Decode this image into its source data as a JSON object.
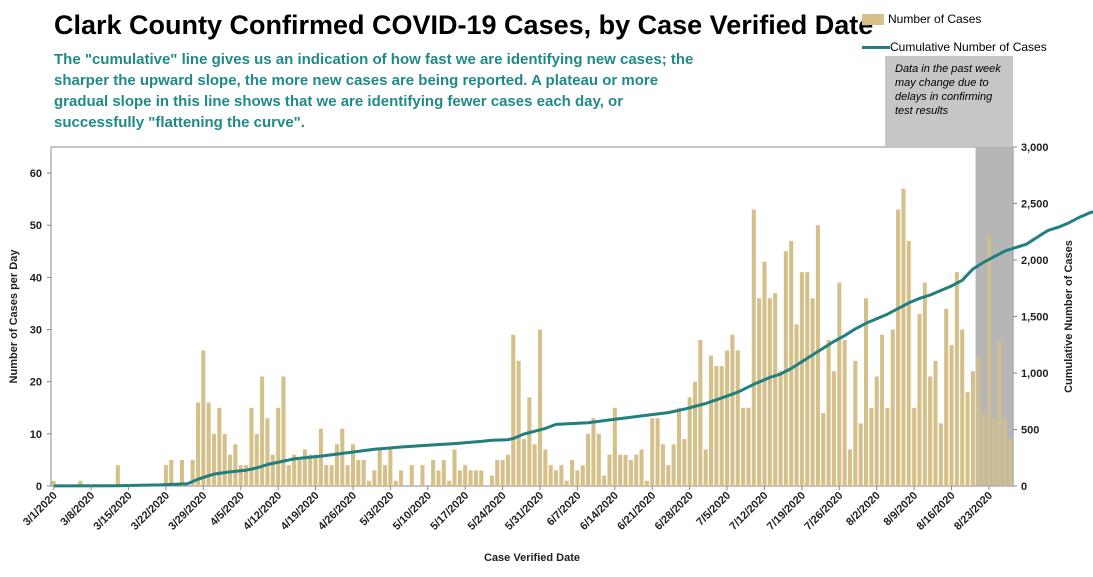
{
  "title": "Clark County Confirmed COVID-19 Cases, by Case Verified Date",
  "subtitle": "The \"cumulative\" line gives  us an indication of how fast we are identifying new cases; the sharper the upward slope, the more new cases are being reported. A plateau or more gradual slope in this line shows that we are identifying fewer cases each day, or successfully \"flattening the curve\".",
  "note": "Data in the past week may change due to delays in confirming test results",
  "colors": {
    "bar": "#d5c08a",
    "line": "#217f80",
    "subtitle": "#1f8a86",
    "shade": "#a9a9a9",
    "note_bg": "#c6c6c6"
  },
  "chart_data": {
    "type": "bar",
    "title": "Clark County Confirmed COVID-19 Cases, by Case Verified Date",
    "xlabel": "Case Verified Date",
    "ylabel": "Number of Cases per Day",
    "y2label": "Cumulative Number of Cases",
    "ylim": [
      0,
      65
    ],
    "y2lim": [
      0,
      3000
    ],
    "yticks": [
      "0",
      "10",
      "20",
      "30",
      "40",
      "50",
      "60"
    ],
    "y2ticks": [
      "0",
      "500",
      "1,000",
      "1,500",
      "2,000",
      "2,500",
      "3,000"
    ],
    "xtick_labels": [
      "3/1/2020",
      "3/8/2020",
      "3/15/2020",
      "3/22/2020",
      "3/29/2020",
      "4/5/2020",
      "4/12/2020",
      "4/19/2020",
      "4/26/2020",
      "5/3/2020",
      "5/10/2020",
      "5/17/2020",
      "5/24/2020",
      "5/31/2020",
      "6/7/2020",
      "6/14/2020",
      "6/21/2020",
      "6/28/2020",
      "7/5/2020",
      "7/12/2020",
      "7/19/2020",
      "7/26/2020",
      "8/2/2020",
      "8/9/2020",
      "8/16/2020",
      "8/23/2020"
    ],
    "x_start": "3/1/2020",
    "x_end": "8/24/2020",
    "shaded_recent_days": 7,
    "legend": {
      "position": "top-right",
      "entries": [
        "Number of Cases",
        "Cumulative Number of Cases"
      ]
    },
    "series": [
      {
        "name": "Number of Cases",
        "type": "bar",
        "values": [
          1,
          0,
          0,
          0,
          0,
          1,
          0,
          0,
          0,
          0,
          0,
          0,
          4,
          0,
          0,
          0,
          0,
          0,
          0,
          0,
          0,
          4,
          5,
          0,
          5,
          0,
          5,
          16,
          26,
          16,
          10,
          15,
          10,
          6,
          8,
          4,
          4,
          15,
          10,
          21,
          13,
          6,
          15,
          21,
          4,
          6,
          5,
          7,
          6,
          6,
          11,
          4,
          4,
          8,
          11,
          4,
          8,
          5,
          5,
          1,
          3,
          7,
          4,
          7,
          1,
          3,
          0,
          4,
          0,
          4,
          0,
          5,
          3,
          5,
          1,
          7,
          3,
          4,
          3,
          3,
          3,
          0,
          2,
          5,
          5,
          6,
          29,
          24,
          9,
          17,
          8,
          30,
          7,
          4,
          3,
          4,
          1,
          5,
          3,
          4,
          10,
          13,
          10,
          2,
          6,
          15,
          6,
          6,
          5,
          6,
          7,
          1,
          13,
          13,
          8,
          4,
          8,
          15,
          9,
          17,
          20,
          28,
          7,
          25,
          23,
          23,
          26,
          29,
          26,
          15,
          15,
          53,
          36,
          43,
          36,
          37,
          22,
          45,
          47,
          31,
          41,
          41,
          36,
          50,
          14,
          28,
          22,
          39,
          28,
          7,
          24,
          12,
          36,
          15,
          21,
          29,
          15,
          30,
          53,
          57,
          47,
          15,
          33,
          39,
          21,
          24,
          12,
          34,
          27,
          41,
          30,
          18,
          22,
          25,
          14,
          48,
          13,
          28,
          13,
          9
        ],
        "last_date": "8/24/2020"
      },
      {
        "name": "Cumulative Number of Cases",
        "type": "line",
        "points": [
          [
            0,
            1
          ],
          [
            12,
            3
          ],
          [
            20,
            10
          ],
          [
            25,
            20
          ],
          [
            27,
            60
          ],
          [
            30,
            105
          ],
          [
            33,
            125
          ],
          [
            36,
            140
          ],
          [
            38,
            160
          ],
          [
            40,
            190
          ],
          [
            43,
            220
          ],
          [
            45,
            240
          ],
          [
            50,
            265
          ],
          [
            55,
            295
          ],
          [
            60,
            325
          ],
          [
            65,
            345
          ],
          [
            70,
            360
          ],
          [
            75,
            375
          ],
          [
            80,
            395
          ],
          [
            85,
            410
          ],
          [
            82,
            405
          ],
          [
            86,
            420
          ],
          [
            88,
            460
          ],
          [
            92,
            510
          ],
          [
            94,
            545
          ],
          [
            100,
            560
          ],
          [
            105,
            590
          ],
          [
            110,
            620
          ],
          [
            115,
            650
          ],
          [
            118,
            680
          ],
          [
            122,
            730
          ],
          [
            125,
            780
          ],
          [
            128,
            830
          ],
          [
            131,
            900
          ],
          [
            134,
            960
          ],
          [
            136,
            990
          ],
          [
            138,
            1040
          ],
          [
            140,
            1100
          ],
          [
            142,
            1160
          ],
          [
            144,
            1220
          ],
          [
            146,
            1280
          ],
          [
            148,
            1330
          ],
          [
            150,
            1390
          ],
          [
            152,
            1440
          ],
          [
            154,
            1480
          ],
          [
            156,
            1520
          ],
          [
            158,
            1570
          ],
          [
            160,
            1620
          ],
          [
            162,
            1660
          ],
          [
            164,
            1690
          ],
          [
            166,
            1730
          ],
          [
            168,
            1770
          ],
          [
            170,
            1820
          ],
          [
            172,
            1920
          ],
          [
            174,
            1980
          ],
          [
            176,
            2030
          ],
          [
            178,
            2080
          ],
          [
            180,
            2110
          ],
          [
            182,
            2140
          ],
          [
            184,
            2200
          ],
          [
            186,
            2260
          ],
          [
            188,
            2290
          ],
          [
            190,
            2330
          ],
          [
            192,
            2380
          ],
          [
            194,
            2420
          ],
          [
            196,
            2440
          ],
          [
            197,
            2450
          ]
        ]
      }
    ]
  }
}
